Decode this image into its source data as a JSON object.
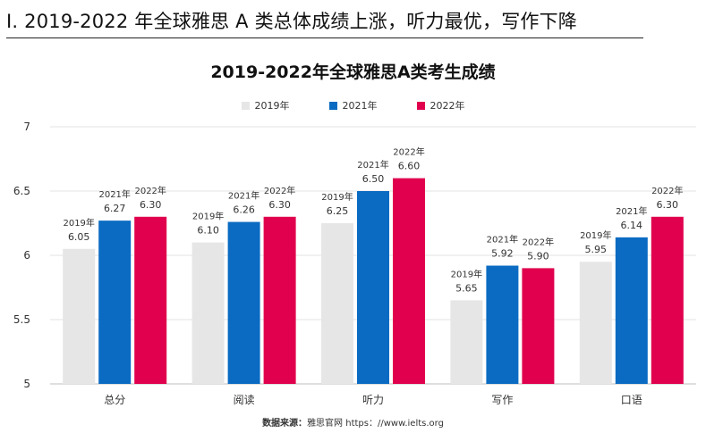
{
  "section_title": "I.  2019-2022 年全球雅思 A 类总体成绩上涨，听力最优，写作下降",
  "source_label": "数据来源：",
  "source_text": "雅思官网 https：//www.ielts.org",
  "colors": {
    "2019年": "#e6e6e6",
    "2021年": "#0b6bc2",
    "2022年": "#e0004d"
  },
  "chart_data": {
    "type": "bar",
    "title": "2019-2022年全球雅思A类考生成绩",
    "xlabel": "",
    "ylabel": "",
    "categories": [
      "总分",
      "阅读",
      "听力",
      "写作",
      "口语"
    ],
    "series": [
      {
        "name": "2019年",
        "values": [
          6.05,
          6.1,
          6.25,
          5.65,
          5.95
        ]
      },
      {
        "name": "2021年",
        "values": [
          6.27,
          6.26,
          6.5,
          5.92,
          6.14
        ]
      },
      {
        "name": "2022年",
        "values": [
          6.3,
          6.3,
          6.6,
          5.9,
          6.3
        ]
      }
    ],
    "data_labels": [
      [
        "6.05",
        "6.10",
        "6.25",
        "5.65",
        "5.95"
      ],
      [
        "6.27",
        "6.26",
        "6.50",
        "5.92",
        "6.14"
      ],
      [
        "6.30",
        "6.30",
        "6.60",
        "5.90",
        "6.30"
      ]
    ],
    "ylim": [
      5,
      7
    ],
    "yticks": [
      "5",
      "5.5",
      "6",
      "6.5",
      "7"
    ],
    "grid": true,
    "legend_position": "top"
  }
}
